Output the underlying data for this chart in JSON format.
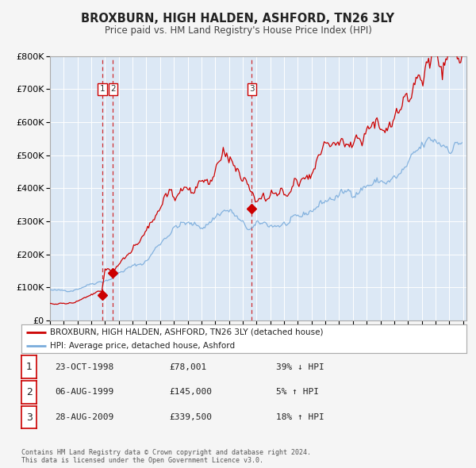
{
  "title": "BROXBURN, HIGH HALDEN, ASHFORD, TN26 3LY",
  "subtitle": "Price paid vs. HM Land Registry's House Price Index (HPI)",
  "ylim": [
    0,
    800000
  ],
  "xlim_start": 1995.0,
  "xlim_end": 2025.25,
  "plot_bg_color": "#dce8f5",
  "grid_color": "#ffffff",
  "red_line_color": "#cc0000",
  "blue_line_color": "#7aacdc",
  "vline_color": "#cc0000",
  "dot_color": "#cc0000",
  "legend_label_red": "BROXBURN, HIGH HALDEN, ASHFORD, TN26 3LY (detached house)",
  "legend_label_blue": "HPI: Average price, detached house, Ashford",
  "transactions": [
    {
      "id": 1,
      "date": "23-OCT-1998",
      "year": 1998.79,
      "price": 78001,
      "pct": "39%",
      "dir": "↓",
      "label": "1"
    },
    {
      "id": 2,
      "date": "06-AUG-1999",
      "year": 1999.58,
      "price": 145000,
      "pct": "5%",
      "dir": "↑",
      "label": "2"
    },
    {
      "id": 3,
      "date": "28-AUG-2009",
      "year": 2009.66,
      "price": 339500,
      "pct": "18%",
      "dir": "↑",
      "label": "3"
    }
  ],
  "footer_text": "Contains HM Land Registry data © Crown copyright and database right 2024.\nThis data is licensed under the Open Government Licence v3.0.",
  "hpi_base": [
    93000,
    91000,
    90000,
    89000,
    90000,
    91000,
    93000,
    95000,
    98000,
    102000,
    106000,
    109000,
    113000,
    116000,
    119000,
    121000,
    123000,
    126000,
    130000,
    136000,
    143000,
    150000,
    155000,
    159000,
    162000,
    165000,
    169000,
    174000,
    181000,
    193000,
    208000,
    222000,
    235000,
    248000,
    260000,
    271000,
    280000,
    287000,
    291000,
    292000,
    290000,
    287000,
    285000,
    284000,
    285000,
    289000,
    296000,
    305000,
    315000,
    325000,
    332000,
    335000,
    332000,
    325000,
    314000,
    300000,
    286000,
    278000,
    275000,
    278000,
    283000,
    287000,
    290000,
    290000,
    289000,
    289000,
    290000,
    291000,
    291000,
    292000,
    294000,
    297000,
    301000,
    308000,
    316000,
    325000,
    334000,
    342000,
    350000,
    357000,
    363000,
    367000,
    371000,
    374000,
    377000,
    381000,
    385000,
    389000,
    393000,
    398000,
    403000,
    407000,
    411000,
    414000,
    416000,
    418000,
    419000,
    420000,
    421000,
    423000,
    427000,
    432000,
    440000,
    453000,
    466000,
    478000,
    491000,
    505000,
    518000,
    528000,
    535000,
    540000,
    541000,
    539000,
    536000,
    534000,
    533000,
    534000,
    537000,
    542000
  ],
  "price_base": [
    52000,
    51000,
    50000,
    50000,
    51000,
    52000,
    53000,
    55000,
    58000,
    62000,
    67000,
    72000,
    77000,
    82000,
    84000,
    79000,
    152000,
    155000,
    156000,
    160000,
    170000,
    182000,
    196000,
    210000,
    222000,
    232000,
    242000,
    252000,
    264000,
    282000,
    305000,
    327000,
    347000,
    365000,
    381000,
    394000,
    404000,
    410000,
    415000,
    416000,
    413000,
    409000,
    407000,
    407000,
    410000,
    418000,
    430000,
    444000,
    460000,
    474000,
    485000,
    490000,
    487000,
    476000,
    458000,
    435000,
    408000,
    384000,
    365000,
    353000,
    349000,
    356000,
    366000,
    374000,
    379000,
    381000,
    383000,
    385000,
    385000,
    388000,
    393000,
    399000,
    408000,
    420000,
    434000,
    449000,
    463000,
    476000,
    488000,
    499000,
    508000,
    515000,
    521000,
    526000,
    530000,
    536000,
    542000,
    549000,
    556000,
    564000,
    573000,
    580000,
    588000,
    594000,
    599000,
    604000,
    607000,
    609000,
    611000,
    615000,
    621000,
    630000,
    644000,
    664000,
    684000,
    703000,
    721000,
    739000,
    757000,
    771000,
    781000,
    788000,
    790000,
    786000,
    781000,
    777000,
    775000,
    778000,
    783000,
    790000
  ],
  "noise_seed": 42
}
